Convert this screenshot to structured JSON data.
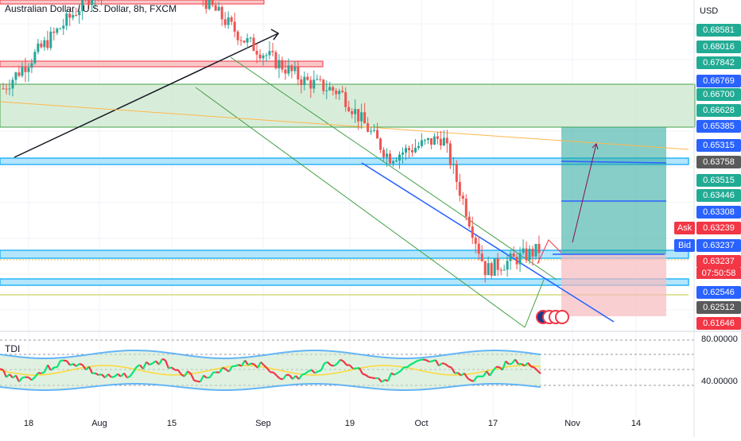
{
  "header": {
    "title": "Australian Dollar / U.S. Dollar, 8h, FXCM"
  },
  "price_axis": {
    "currency": "USD",
    "labels": [
      {
        "value": "0.68581",
        "color": "#22ab94"
      },
      {
        "value": "0.68016",
        "color": "#22ab94"
      },
      {
        "value": "0.67842",
        "color": "#22ab94"
      },
      {
        "value": "0.66769",
        "color": "#2962ff"
      },
      {
        "value": "0.66700",
        "color": "#22ab94"
      },
      {
        "value": "0.66628",
        "color": "#22ab94"
      },
      {
        "value": "0.65385",
        "color": "#2962ff"
      },
      {
        "value": "0.65315",
        "color": "#2962ff"
      },
      {
        "value": "0.63758",
        "color": "#5a5a5a"
      },
      {
        "value": "0.63515",
        "color": "#22ab94"
      },
      {
        "value": "0.63446",
        "color": "#22ab94"
      },
      {
        "value": "0.63308",
        "color": "#2962ff"
      },
      {
        "value": "0.63239",
        "color": "#f23645"
      },
      {
        "value": "0.63237",
        "color": "#2962ff"
      },
      {
        "value": "0.63237",
        "color": "#f23645"
      },
      {
        "value": "0.62546",
        "color": "#2962ff"
      },
      {
        "value": "0.62512",
        "color": "#5a5a5a"
      },
      {
        "value": "0.61646",
        "color": "#f23645"
      }
    ],
    "ask_label": "Ask",
    "bid_label": "Bid",
    "countdown": "07:50:58"
  },
  "oscillator": {
    "name": "TDI",
    "levels": [
      "80.00000",
      "40.00000"
    ]
  },
  "time_axis": {
    "labels": [
      "18",
      "Aug",
      "15",
      "Sep",
      "19",
      "Oct",
      "17",
      "Nov",
      "14"
    ]
  },
  "colors": {
    "up": "#26a69a",
    "down": "#ef5350",
    "zone_green": "#a5d6a7",
    "zone_cyan": "#4fc3f7",
    "zone_red": "#ef9a9a",
    "trend_blue": "#2962ff",
    "position_target": "#26a69a",
    "position_stop": "#f23645"
  },
  "chart_data": {
    "type": "candlestick",
    "title": "Australian Dollar / U.S. Dollar, 8h, FXCM",
    "x_ticks": [
      "18",
      "Aug",
      "15",
      "Sep",
      "19",
      "Oct",
      "17",
      "Nov",
      "14"
    ],
    "y_unit": "USD",
    "ylim": [
      0.615,
      0.688
    ],
    "trend": [
      {
        "period": "Jul 18",
        "close": 0.672
      },
      {
        "period": "Aug 1",
        "close": 0.696
      },
      {
        "period": "Aug 12",
        "close": 0.712
      },
      {
        "period": "Aug 15",
        "close": 0.7
      },
      {
        "period": "Sep 1",
        "close": 0.684
      },
      {
        "period": "Sep 13",
        "close": 0.674
      },
      {
        "period": "Sep 19",
        "close": 0.671
      },
      {
        "period": "Sep 28",
        "close": 0.655
      },
      {
        "period": "Oct 5",
        "close": 0.66
      },
      {
        "period": "Oct 13",
        "close": 0.627
      },
      {
        "period": "Oct 21",
        "close": 0.632
      }
    ],
    "horizontal_levels": [
      0.67842,
      0.66769,
      0.65385,
      0.63758,
      0.63237,
      0.62546,
      0.62512
    ],
    "position": {
      "entry": 0.63237,
      "target": 0.65385,
      "stop": 0.61646
    },
    "oscillator": {
      "name": "TDI",
      "upper": 80,
      "lower": 40
    }
  }
}
